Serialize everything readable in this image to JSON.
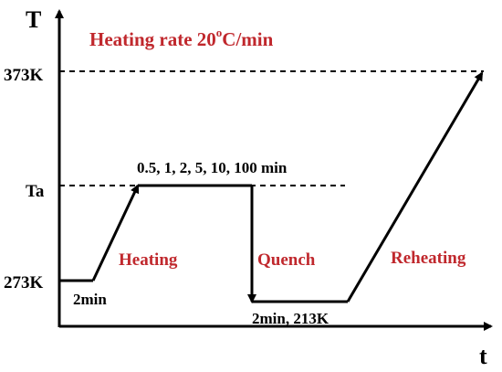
{
  "axes": {
    "y_symbol": "T",
    "x_symbol": "t",
    "y_ticks": [
      "373K",
      "Ta",
      "273K"
    ]
  },
  "title": {
    "prefix": "Heating rate 20",
    "superscript": "o",
    "suffix": "C/min"
  },
  "stages": {
    "heating": "Heating",
    "quench": "Quench",
    "reheating": "Reheating"
  },
  "annotations": {
    "hold_low": "2min",
    "hold_ta": "0.5, 1, 2, 5, 10, 100 min",
    "hold_quench": "2min, 213K"
  },
  "colors": {
    "stage_label": "#c0282d",
    "line": "#000000"
  }
}
